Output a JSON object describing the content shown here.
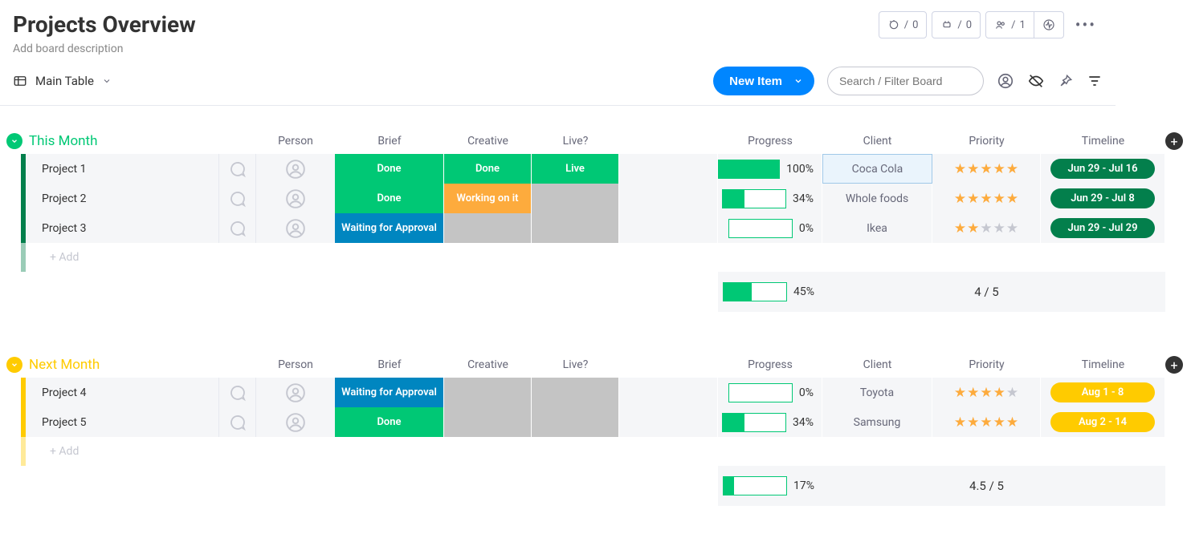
{
  "colors": {
    "accent": "#0086ff",
    "green": "#00c875",
    "darkgreen": "#037f4c",
    "blue": "#0086c0",
    "orange": "#fdab3d",
    "yellow": "#ffcb00",
    "grey": "#c4c4c4"
  },
  "header": {
    "title": "Projects Overview",
    "description_placeholder": "Add board description",
    "automations_count": "0",
    "integrations_count": "0",
    "viewers_count": "1"
  },
  "viewbar": {
    "view_name": "Main Table",
    "new_item_label": "New Item",
    "search_placeholder": "Search / Filter Board"
  },
  "columns": {
    "person": "Person",
    "brief": "Brief",
    "creative": "Creative",
    "live": "Live?",
    "progress": "Progress",
    "client": "Client",
    "priority": "Priority",
    "timeline": "Timeline"
  },
  "add_row_label": "+ Add",
  "groups": [
    {
      "name": "This Month",
      "color": "#00c875",
      "bar_color": "#037f4c",
      "summary": {
        "progress_pct": 45,
        "progress_label": "45%",
        "priority_label": "4 / 5"
      },
      "rows": [
        {
          "name": "Project 1",
          "brief": {
            "label": "Done",
            "color": "#00c875"
          },
          "creative": {
            "label": "Done",
            "color": "#00c875"
          },
          "live": {
            "label": "Live",
            "color": "#00c875"
          },
          "progress_pct": 100,
          "progress_label": "100%",
          "client": "Coca Cola",
          "client_highlight": true,
          "priority": 5,
          "timeline": {
            "label": "Jun 29 - Jul 16",
            "color": "#037f4c"
          }
        },
        {
          "name": "Project 2",
          "brief": {
            "label": "Done",
            "color": "#00c875"
          },
          "creative": {
            "label": "Working on it",
            "color": "#fdab3d"
          },
          "live": {
            "label": "",
            "color": "#c4c4c4"
          },
          "progress_pct": 34,
          "progress_label": "34%",
          "client": "Whole foods",
          "client_highlight": false,
          "priority": 5,
          "timeline": {
            "label": "Jun 29 - Jul 8",
            "color": "#037f4c"
          }
        },
        {
          "name": "Project 3",
          "brief": {
            "label": "Waiting for Approval",
            "color": "#0086c0"
          },
          "creative": {
            "label": "",
            "color": "#c4c4c4"
          },
          "live": {
            "label": "",
            "color": "#c4c4c4"
          },
          "progress_pct": 0,
          "progress_label": "0%",
          "client": "Ikea",
          "client_highlight": false,
          "priority": 2,
          "timeline": {
            "label": "Jun 29 - Jul 29",
            "color": "#037f4c"
          }
        }
      ]
    },
    {
      "name": "Next Month",
      "color": "#ffcb00",
      "bar_color": "#ffcb00",
      "summary": {
        "progress_pct": 17,
        "progress_label": "17%",
        "priority_label": "4.5 / 5"
      },
      "rows": [
        {
          "name": "Project 4",
          "brief": {
            "label": "Waiting for Approval",
            "color": "#0086c0"
          },
          "creative": {
            "label": "",
            "color": "#c4c4c4"
          },
          "live": {
            "label": "",
            "color": "#c4c4c4"
          },
          "progress_pct": 0,
          "progress_label": "0%",
          "client": "Toyota",
          "client_highlight": false,
          "priority": 4,
          "timeline": {
            "label": "Aug 1 - 8",
            "color": "#ffcb00"
          }
        },
        {
          "name": "Project 5",
          "brief": {
            "label": "Done",
            "color": "#00c875"
          },
          "creative": {
            "label": "",
            "color": "#c4c4c4"
          },
          "live": {
            "label": "",
            "color": "#c4c4c4"
          },
          "progress_pct": 34,
          "progress_label": "34%",
          "client": "Samsung",
          "client_highlight": false,
          "priority": 5,
          "timeline": {
            "label": "Aug 2 - 14",
            "color": "#ffcb00"
          }
        }
      ]
    }
  ]
}
